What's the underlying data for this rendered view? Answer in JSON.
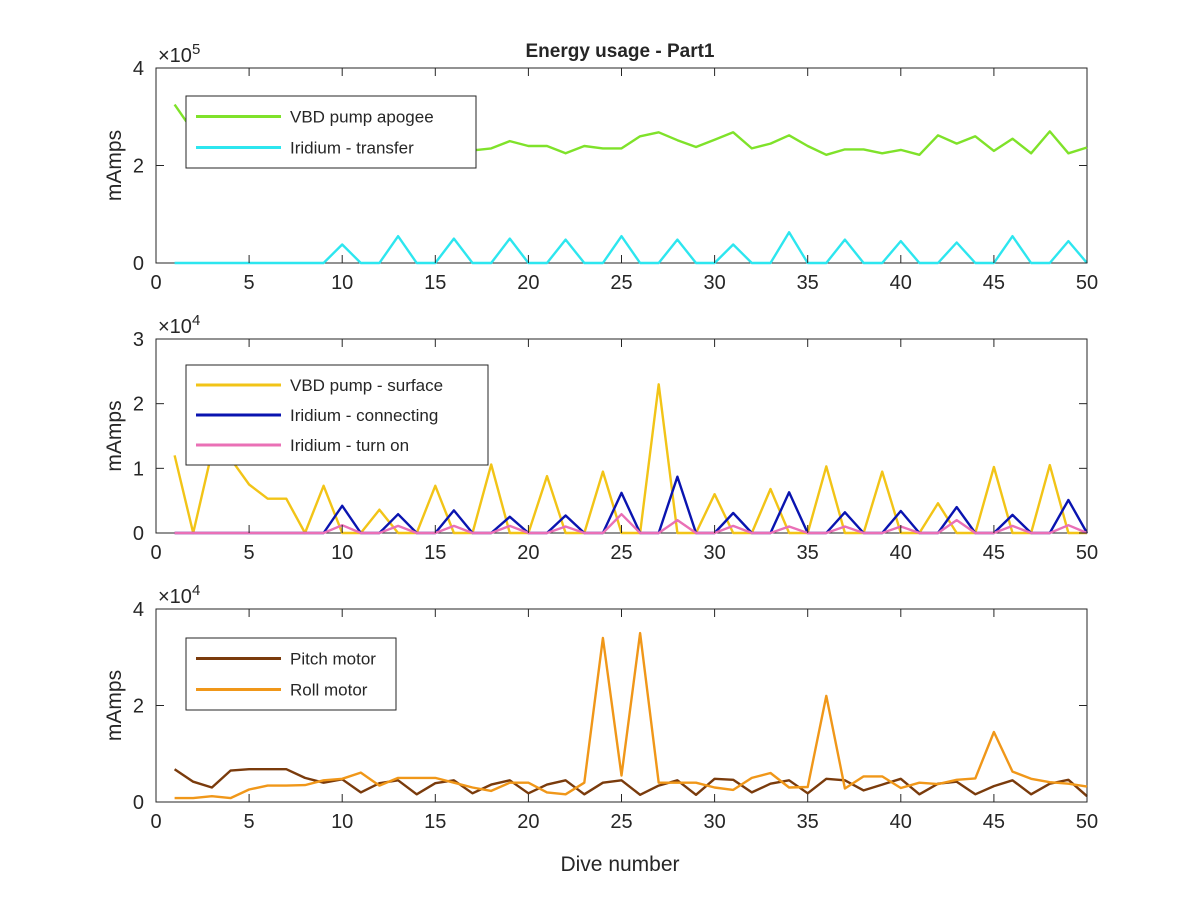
{
  "figure": {
    "title": "Energy usage - Part1",
    "xlabel": "Dive number"
  },
  "chart_data": [
    {
      "type": "line",
      "title": "Energy usage - Part1",
      "xlabel": "",
      "ylabel": "mAmps",
      "exponent": "5",
      "xlim": [
        0,
        50
      ],
      "ylim": [
        0,
        400000
      ],
      "xticks": [
        0,
        5,
        10,
        15,
        20,
        25,
        30,
        35,
        40,
        45,
        50
      ],
      "xtick_labels": [
        "0",
        "5",
        "10",
        "15",
        "20",
        "25",
        "30",
        "35",
        "40",
        "45",
        "50"
      ],
      "yticks": [
        0,
        200000,
        400000
      ],
      "ytick_labels": [
        "0",
        "2",
        "4"
      ],
      "grid": false,
      "legend_position": "top-left",
      "x": [
        1,
        2,
        3,
        4,
        5,
        6,
        7,
        8,
        9,
        10,
        11,
        12,
        13,
        14,
        15,
        16,
        17,
        18,
        19,
        20,
        21,
        22,
        23,
        24,
        25,
        26,
        27,
        28,
        29,
        30,
        31,
        32,
        33,
        34,
        35,
        36,
        37,
        38,
        39,
        40,
        41,
        42,
        43,
        44,
        45,
        46,
        47,
        48,
        49,
        50
      ],
      "series": [
        {
          "name": "VBD pump apogee",
          "color": "#7fe22a",
          "values": [
            325000,
            270000,
            250000,
            250000,
            248000,
            246000,
            244000,
            242000,
            240000,
            238000,
            236000,
            235000,
            233000,
            238000,
            247000,
            238000,
            231000,
            235000,
            250000,
            240000,
            240000,
            225000,
            240000,
            235000,
            235000,
            260000,
            268000,
            252000,
            238000,
            253000,
            268000,
            235000,
            245000,
            262000,
            240000,
            222000,
            233000,
            233000,
            225000,
            232000,
            222000,
            262000,
            245000,
            260000,
            230000,
            255000,
            225000,
            270000,
            225000,
            237000
          ]
        },
        {
          "name": "Iridium - transfer",
          "color": "#2de6ef",
          "values": [
            0,
            0,
            0,
            0,
            0,
            0,
            0,
            0,
            0,
            38000,
            0,
            0,
            55000,
            0,
            0,
            50000,
            0,
            0,
            50000,
            0,
            0,
            48000,
            0,
            0,
            55000,
            0,
            0,
            48000,
            0,
            0,
            38000,
            0,
            0,
            63000,
            0,
            0,
            48000,
            0,
            0,
            45000,
            0,
            0,
            42000,
            0,
            0,
            55000,
            0,
            0,
            45000,
            0
          ]
        }
      ]
    },
    {
      "type": "line",
      "title": "",
      "xlabel": "",
      "ylabel": "mAmps",
      "exponent": "4",
      "xlim": [
        0,
        50
      ],
      "ylim": [
        0,
        30000
      ],
      "xticks": [
        0,
        5,
        10,
        15,
        20,
        25,
        30,
        35,
        40,
        45,
        50
      ],
      "xtick_labels": [
        "0",
        "5",
        "10",
        "15",
        "20",
        "25",
        "30",
        "35",
        "40",
        "45",
        "50"
      ],
      "yticks": [
        0,
        10000,
        20000,
        30000
      ],
      "ytick_labels": [
        "0",
        "1",
        "2",
        "3"
      ],
      "grid": false,
      "legend_position": "top-left",
      "x": [
        1,
        2,
        3,
        4,
        5,
        6,
        7,
        8,
        9,
        10,
        11,
        12,
        13,
        14,
        15,
        16,
        17,
        18,
        19,
        20,
        21,
        22,
        23,
        24,
        25,
        26,
        27,
        28,
        29,
        30,
        31,
        32,
        33,
        34,
        35,
        36,
        37,
        38,
        39,
        40,
        41,
        42,
        43,
        44,
        45,
        46,
        47,
        48,
        49,
        50
      ],
      "series": [
        {
          "name": "VBD pump - surface",
          "color": "#f2c417",
          "values": [
            12000,
            0,
            12500,
            11500,
            7500,
            5300,
            5300,
            0,
            7300,
            0,
            0,
            3600,
            0,
            0,
            7300,
            0,
            0,
            10600,
            0,
            0,
            8800,
            0,
            0,
            9500,
            0,
            0,
            23000,
            0,
            0,
            6000,
            0,
            0,
            6800,
            0,
            0,
            10300,
            0,
            0,
            9500,
            0,
            0,
            4600,
            0,
            0,
            10200,
            0,
            0,
            10500,
            0,
            0
          ]
        },
        {
          "name": "Iridium - connecting",
          "color": "#0a14b0",
          "values": [
            0,
            0,
            0,
            0,
            0,
            0,
            0,
            0,
            0,
            4200,
            0,
            0,
            2900,
            0,
            0,
            3500,
            0,
            0,
            2500,
            0,
            0,
            2700,
            0,
            0,
            6200,
            0,
            0,
            8700,
            0,
            0,
            3100,
            0,
            0,
            6300,
            0,
            0,
            3200,
            0,
            0,
            3400,
            0,
            0,
            4000,
            0,
            0,
            2800,
            0,
            0,
            5100,
            0
          ]
        },
        {
          "name": "Iridium - turn on",
          "color": "#ea70b6",
          "values": [
            0,
            0,
            0,
            0,
            0,
            0,
            0,
            0,
            0,
            1200,
            0,
            0,
            1100,
            0,
            0,
            1100,
            0,
            0,
            1100,
            0,
            0,
            1000,
            0,
            0,
            2900,
            0,
            0,
            2000,
            0,
            0,
            1100,
            0,
            0,
            1000,
            0,
            0,
            1000,
            0,
            0,
            1000,
            0,
            0,
            2000,
            0,
            0,
            1100,
            0,
            0,
            1200,
            0
          ]
        }
      ]
    },
    {
      "type": "line",
      "title": "",
      "xlabel": "Dive number",
      "ylabel": "mAmps",
      "exponent": "4",
      "xlim": [
        0,
        50
      ],
      "ylim": [
        0,
        40000
      ],
      "xticks": [
        0,
        5,
        10,
        15,
        20,
        25,
        30,
        35,
        40,
        45,
        50
      ],
      "xtick_labels": [
        "0",
        "5",
        "10",
        "15",
        "20",
        "25",
        "30",
        "35",
        "40",
        "45",
        "50"
      ],
      "yticks": [
        0,
        20000,
        40000
      ],
      "ytick_labels": [
        "0",
        "2",
        "4"
      ],
      "grid": false,
      "legend_position": "top-left",
      "x": [
        1,
        2,
        3,
        4,
        5,
        6,
        7,
        8,
        9,
        10,
        11,
        12,
        13,
        14,
        15,
        16,
        17,
        18,
        19,
        20,
        21,
        22,
        23,
        24,
        25,
        26,
        27,
        28,
        29,
        30,
        31,
        32,
        33,
        34,
        35,
        36,
        37,
        38,
        39,
        40,
        41,
        42,
        43,
        44,
        45,
        46,
        47,
        48,
        49,
        50
      ],
      "series": [
        {
          "name": "Pitch motor",
          "color": "#7a3b0c",
          "values": [
            6800,
            4200,
            3000,
            6500,
            6800,
            6800,
            6800,
            5000,
            4000,
            4700,
            2000,
            3900,
            4500,
            1600,
            3900,
            4500,
            1800,
            3600,
            4500,
            1800,
            3600,
            4500,
            1600,
            4000,
            4500,
            1500,
            3400,
            4500,
            1500,
            4800,
            4600,
            2000,
            3800,
            4500,
            1800,
            4800,
            4500,
            2400,
            3600,
            4800,
            1600,
            3800,
            4200,
            1600,
            3300,
            4500,
            1600,
            3800,
            4600,
            1200
          ]
        },
        {
          "name": "Roll motor",
          "color": "#f09719",
          "values": [
            800,
            800,
            1200,
            800,
            2600,
            3400,
            3400,
            3500,
            4500,
            4800,
            6100,
            3400,
            5000,
            5000,
            5000,
            4000,
            3000,
            2300,
            4000,
            4000,
            2000,
            1600,
            4000,
            34000,
            5500,
            35000,
            4000,
            4000,
            4000,
            3000,
            2500,
            5000,
            6000,
            3000,
            3100,
            22000,
            2800,
            5300,
            5300,
            2900,
            4000,
            3700,
            4600,
            4900,
            14500,
            6300,
            4800,
            4100,
            3800,
            3200
          ]
        }
      ]
    }
  ]
}
